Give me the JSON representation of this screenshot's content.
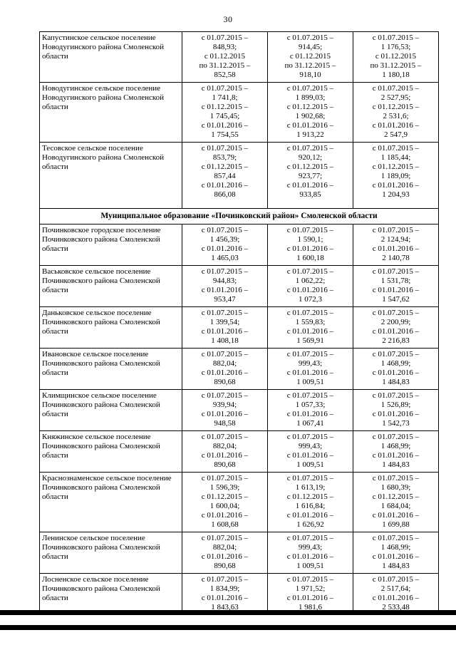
{
  "page_number": "30",
  "colors": {
    "ink": "#000000",
    "paper": "#ffffff"
  },
  "table": {
    "rows": [
      {
        "name": "Капустинское сельское поселение Новодугинского района Смоленской области",
        "cols": [
          "с 01.07.2015 –\n848,93;\nс 01.12.2015\nпо 31.12.2015 –\n852,58",
          "с 01.07.2015 –\n914,45;\nс 01.12.2015\nпо 31.12.2015 –\n918,10",
          "с 01.07.2015 –\n1 176,53;\nс 01.12.2015\nпо 31.12.2015 –\n1 180,18"
        ]
      },
      {
        "name": "Новодугинское сельское поселение Новодугинского района Смоленской области",
        "cols": [
          "с 01.07.2015 –\n1 741,8;\nс 01.12.2015 –\n1 745,45;\nс 01.01.2016 –\n1 754,55",
          "с 01.07.2015 –\n1 899,03;\nс 01.12.2015 –\n1 902,68;\nс 01.01.2016 –\n1 913,22",
          "с 01.07.2015 –\n2 527,95;\nс 01.12.2015 –\n2 531,6;\nс 01.01.2016 –\n2 547,9"
        ]
      },
      {
        "name": "Тесовское сельское поселение Новодугинского района Смоленской области",
        "tall": true,
        "cols": [
          "с 01.07.2015 –\n853,79;\nс 01.12.2015 –\n857,44\nс 01.01.2016 –\n866,08",
          "с 01.07.2015 –\n920,12;\nс 01.12.2015 –\n923,77;\nс 01.01.2016 –\n933,85",
          "с 01.07.2015 –\n1 185,44;\nс 01.12.2015 –\n1 189,09;\nс 01.01.2016 –\n1 204,93"
        ]
      },
      {
        "section": "Муниципальное образование «Починковский район» Смоленской области"
      },
      {
        "name": "Починковское городское поселение Починковского района Смоленской области",
        "cols": [
          "с 01.07.2015 –\n1 456,39;\nс 01.01.2016 –\n1 465,03",
          "с 01.07.2015 –\n1 590,1;\nс 01.01.2016 –\n1 600,18",
          "с 01.07.2015 –\n2 124,94;\nс 01.01.2016 –\n2 140,78"
        ]
      },
      {
        "name": "Васьковское сельское поселение Починковского района Смоленской области",
        "cols": [
          "с 01.07.2015 –\n944,83;\nс 01.01.2016 –\n953,47",
          "с 01.07.2015 –\n1 062,22;\nс 01.01.2016 –\n1 072,3",
          "с 01.07.2015 –\n1 531,78;\nс 01.01.2016 –\n1 547,62"
        ]
      },
      {
        "name": "Даньковское сельское поселение Починковского района Смоленской области",
        "cols": [
          "с 01.07.2015 –\n1 399,54;\nс 01.01.2016 –\n1 408,18",
          "с 01.07.2015 –\n1 559,83;\nс 01.01.2016 –\n1 569,91",
          "с 01.07.2015 –\n2 200,99;\nс 01.01.2016 –\n2 216,83"
        ]
      },
      {
        "name": "Ивановское сельское поселение Починковского района Смоленской области",
        "cols": [
          "с 01.07.2015 –\n882,04;\nс 01.01.2016 –\n890,68",
          "с 01.07.2015 –\n999,43;\nс 01.01.2016 –\n1 009,51",
          "с 01.07.2015 –\n1 468,99;\nс 01.01.2016 –\n1 484,83"
        ]
      },
      {
        "name": "Климщинское сельское поселение Починковского района Смоленской области",
        "cols": [
          "с 01.07.2015 –\n939,94;\nс 01.01.2016 –\n948,58",
          "с 01.07.2015 –\n1 057,33;\nс 01.01.2016 –\n1 067,41",
          "с 01.07.2015 –\n1 526,89;\nс 01.01.2016 –\n1 542,73"
        ]
      },
      {
        "name": "Княжинское сельское поселение Починковского района Смоленской области",
        "cols": [
          "с 01.07.2015 –\n882,04;\nс 01.01.2016 –\n890,68",
          "с 01.07.2015 –\n999,43;\nс 01.01.2016 –\n1 009,51",
          "с 01.07.2015 –\n1 468,99;\nс 01.01.2016 –\n1 484,83"
        ]
      },
      {
        "name": "Краснознаменское сельское поселение Починковского района Смоленской области",
        "cols": [
          "с 01.07.2015 –\n1 596,39;\nс 01.12.2015 –\n1 600,04;\nс 01.01.2016 –\n1 608,68",
          "с 01.07.2015 –\n1 613,19;\nс 01.12.2015 –\n1 616,84;\nс 01.01.2016 –\n1 626,92",
          "с 01.07.2015 –\n1 680,39;\nс 01.12.2015 –\n1 684,04;\nс 01.01.2016 –\n1 699,88"
        ]
      },
      {
        "name": "Ленинское сельское поселение Починковского района Смоленской области",
        "cols": [
          "с 01.07.2015 –\n882,04;\nс 01.01.2016 –\n890,68",
          "с 01.07.2015 –\n999,43;\nс 01.01.2016 –\n1 009,51",
          "с 01.07.2015 –\n1 468,99;\nс 01.01.2016 –\n1 484,83"
        ]
      },
      {
        "name": "Лосненское сельское поселение Починковского района Смоленской области",
        "cols": [
          "с 01.07.2015 –\n1 834,99;\nс 01.01.2016 –\n1 843,63",
          "с 01.07.2015 –\n1 971,52;\nс 01.01.2016 –\n1 981,6",
          "с 01.07.2015 –\n2 517,64;\nс 01.01.2016 –\n2 533,48"
        ]
      }
    ]
  }
}
